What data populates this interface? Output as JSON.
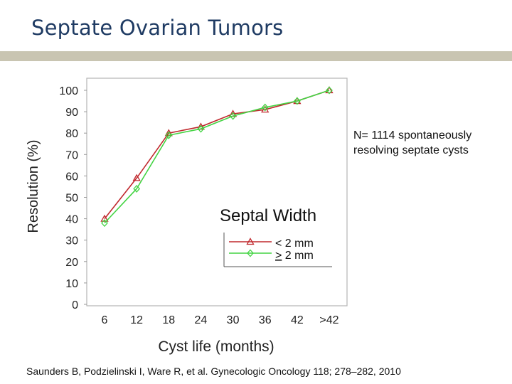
{
  "slide": {
    "title": "Septate Ovarian Tumors",
    "note_line1": "N= 1114 spontaneously",
    "note_line2": "resolving septate cysts",
    "citation": "Saunders B, Podzielinski I, Ware R, et al. Gynecologic Oncology 118; 278–282, 2010"
  },
  "chart_data": {
    "type": "line",
    "title": "",
    "xlabel": "Cyst life (months)",
    "ylabel": "Resolution (%)",
    "categories": [
      "6",
      "12",
      "18",
      "24",
      "30",
      "36",
      "42",
      ">42"
    ],
    "ylim": [
      0,
      100
    ],
    "yticks": [
      0,
      10,
      20,
      30,
      40,
      50,
      60,
      70,
      80,
      90,
      100
    ],
    "grid": false,
    "legend_title": "Septal Width",
    "legend_position": "bottom-right",
    "series": [
      {
        "name": "< 2 mm",
        "marker": "triangle",
        "color": "#c0282d",
        "values": [
          40,
          59,
          80,
          83,
          89,
          91,
          95,
          100
        ]
      },
      {
        "name": "> 2 mm",
        "name_underlined_prefix": ">",
        "name_rest": " 2 mm",
        "marker": "diamond",
        "color": "#44d444",
        "values": [
          38,
          54,
          79,
          82,
          88,
          92,
          95,
          100
        ]
      }
    ]
  }
}
